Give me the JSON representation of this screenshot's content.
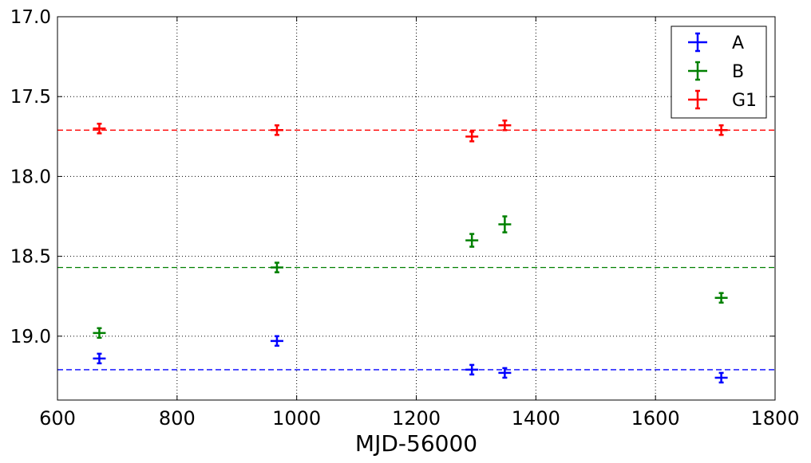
{
  "chart_data": {
    "type": "scatter",
    "title": "",
    "xlabel": "MJD-56000",
    "ylabel": "",
    "xlim": [
      600,
      1800
    ],
    "ylim": [
      17.0,
      19.4
    ],
    "y_inverted": true,
    "grid": true,
    "legend_position": "top-right",
    "x_ticks": [
      600,
      800,
      1000,
      1200,
      1400,
      1600,
      1800
    ],
    "x_tick_labels": [
      "600",
      "800",
      "1000",
      "1200",
      "1400",
      "1600",
      "1800"
    ],
    "y_ticks": [
      17.0,
      17.5,
      18.0,
      18.5,
      19.0
    ],
    "y_tick_labels": [
      "17.0",
      "17.5",
      "18.0",
      "18.5",
      "19.0"
    ],
    "series": [
      {
        "name": "A",
        "color": "#0000ff",
        "reference_line": 19.21,
        "points": [
          {
            "x": 670,
            "y": 19.14,
            "yerr": 0.03
          },
          {
            "x": 967,
            "y": 19.03,
            "yerr": 0.03
          },
          {
            "x": 1293,
            "y": 19.21,
            "yerr": 0.03
          },
          {
            "x": 1348,
            "y": 19.23,
            "yerr": 0.03
          },
          {
            "x": 1710,
            "y": 19.26,
            "yerr": 0.03
          }
        ]
      },
      {
        "name": "B",
        "color": "#008000",
        "reference_line": 18.57,
        "points": [
          {
            "x": 670,
            "y": 18.98,
            "yerr": 0.03
          },
          {
            "x": 967,
            "y": 18.57,
            "yerr": 0.03
          },
          {
            "x": 1293,
            "y": 18.4,
            "yerr": 0.04
          },
          {
            "x": 1348,
            "y": 18.3,
            "yerr": 0.05
          },
          {
            "x": 1710,
            "y": 18.76,
            "yerr": 0.03
          }
        ]
      },
      {
        "name": "G1",
        "color": "#ff0000",
        "reference_line": 17.71,
        "points": [
          {
            "x": 670,
            "y": 17.7,
            "yerr": 0.03
          },
          {
            "x": 967,
            "y": 17.71,
            "yerr": 0.03
          },
          {
            "x": 1293,
            "y": 17.75,
            "yerr": 0.03
          },
          {
            "x": 1348,
            "y": 17.68,
            "yerr": 0.03
          },
          {
            "x": 1710,
            "y": 17.71,
            "yerr": 0.03
          }
        ]
      }
    ]
  }
}
